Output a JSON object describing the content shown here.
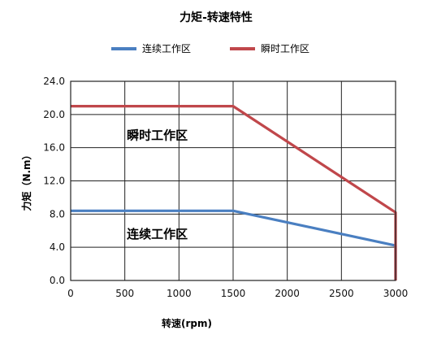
{
  "chart_data": {
    "type": "line",
    "title": "力矩-转速特性",
    "xlabel": "转速(rpm)",
    "ylabel": "力矩（N.m）",
    "xlim": [
      0,
      3000
    ],
    "ylim": [
      0,
      24
    ],
    "x_ticks": [
      "0",
      "500",
      "1000",
      "1500",
      "2000",
      "2500",
      "3000"
    ],
    "y_ticks": [
      "0.0",
      "4.0",
      "8.0",
      "12.0",
      "16.0",
      "20.0",
      "24.0"
    ],
    "grid": true,
    "legend_position": "top",
    "series": [
      {
        "name": "连续工作区",
        "color": "#4a7fc1",
        "x": [
          0,
          1500,
          3000,
          3000
        ],
        "y": [
          8.4,
          8.4,
          4.2,
          0
        ]
      },
      {
        "name": "瞬时工作区",
        "color": "#c0474b",
        "x": [
          0,
          1500,
          3000,
          3000
        ],
        "y": [
          21,
          21,
          8.2,
          0
        ]
      }
    ],
    "annotations": [
      {
        "text": "瞬时工作区",
        "x": 800,
        "y": 17
      },
      {
        "text": "连续工作区",
        "x": 800,
        "y": 5.1
      }
    ]
  }
}
